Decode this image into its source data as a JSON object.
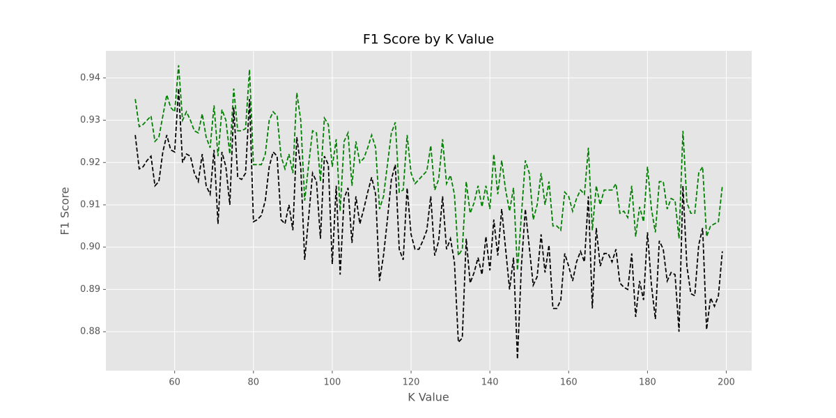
{
  "chart_data": {
    "type": "line",
    "title": "F1 Score by K Value",
    "x_label": "K Value",
    "y_label": "F1 Score",
    "x": [
      50,
      51,
      52,
      53,
      54,
      55,
      56,
      57,
      58,
      59,
      60,
      61,
      62,
      63,
      64,
      65,
      66,
      67,
      68,
      69,
      70,
      71,
      72,
      73,
      74,
      75,
      76,
      77,
      78,
      79,
      80,
      81,
      82,
      83,
      84,
      85,
      86,
      87,
      88,
      89,
      90,
      91,
      92,
      93,
      94,
      95,
      96,
      97,
      98,
      99,
      100,
      101,
      102,
      103,
      104,
      105,
      106,
      107,
      108,
      109,
      110,
      111,
      112,
      113,
      114,
      115,
      116,
      117,
      118,
      119,
      120,
      121,
      122,
      123,
      124,
      125,
      126,
      127,
      128,
      129,
      130,
      131,
      132,
      133,
      134,
      135,
      136,
      137,
      138,
      139,
      140,
      141,
      142,
      143,
      144,
      145,
      146,
      147,
      148,
      149,
      150,
      151,
      152,
      153,
      154,
      155,
      156,
      157,
      158,
      159,
      160,
      161,
      162,
      163,
      164,
      165,
      166,
      167,
      168,
      169,
      170,
      171,
      172,
      173,
      174,
      175,
      176,
      177,
      178,
      179,
      180,
      181,
      182,
      183,
      184,
      185,
      186,
      187,
      188,
      189,
      190,
      191,
      192,
      193,
      194,
      195,
      196,
      197,
      198,
      199
    ],
    "series": [
      {
        "color": "#008000",
        "values": [
          0.935,
          0.9285,
          0.929,
          0.93,
          0.931,
          0.925,
          0.926,
          0.931,
          0.936,
          0.933,
          0.932,
          0.943,
          0.93,
          0.932,
          0.93,
          0.9275,
          0.927,
          0.9315,
          0.926,
          0.9235,
          0.9335,
          0.9215,
          0.9325,
          0.93,
          0.922,
          0.9375,
          0.9275,
          0.9275,
          0.928,
          0.942,
          0.9195,
          0.9195,
          0.9195,
          0.922,
          0.93,
          0.932,
          0.931,
          0.9215,
          0.9185,
          0.922,
          0.9175,
          0.9365,
          0.93,
          0.911,
          0.9195,
          0.9275,
          0.927,
          0.9155,
          0.9305,
          0.929,
          0.919,
          0.9255,
          0.9085,
          0.925,
          0.927,
          0.9145,
          0.925,
          0.92,
          0.921,
          0.9235,
          0.9265,
          0.9235,
          0.909,
          0.912,
          0.9195,
          0.927,
          0.9295,
          0.913,
          0.9135,
          0.9265,
          0.9175,
          0.915,
          0.916,
          0.917,
          0.918,
          0.924,
          0.9135,
          0.916,
          0.9255,
          0.915,
          0.917,
          0.9125,
          0.898,
          0.8995,
          0.9155,
          0.908,
          0.9105,
          0.9145,
          0.9095,
          0.9145,
          0.909,
          0.922,
          0.9125,
          0.9205,
          0.9135,
          0.9085,
          0.914,
          0.8945,
          0.9075,
          0.9205,
          0.9175,
          0.9065,
          0.91,
          0.9175,
          0.91,
          0.9155,
          0.905,
          0.905,
          0.904,
          0.913,
          0.912,
          0.9085,
          0.9115,
          0.9135,
          0.9125,
          0.9235,
          0.904,
          0.9145,
          0.91,
          0.9135,
          0.9135,
          0.9135,
          0.915,
          0.908,
          0.9085,
          0.907,
          0.9145,
          0.9025,
          0.9095,
          0.906,
          0.919,
          0.909,
          0.9035,
          0.9155,
          0.9155,
          0.909,
          0.9115,
          0.911,
          0.902,
          0.9275,
          0.9105,
          0.908,
          0.908,
          0.9175,
          0.919,
          0.9025,
          0.905,
          0.9055,
          0.906,
          0.9145
        ]
      },
      {
        "color": "#000000",
        "values": [
          0.9265,
          0.9185,
          0.919,
          0.9205,
          0.9215,
          0.9145,
          0.9155,
          0.9225,
          0.9265,
          0.923,
          0.9225,
          0.9375,
          0.92,
          0.922,
          0.9215,
          0.9175,
          0.9155,
          0.922,
          0.9145,
          0.9125,
          0.923,
          0.9055,
          0.9225,
          0.919,
          0.91,
          0.933,
          0.9165,
          0.916,
          0.9175,
          0.935,
          0.906,
          0.9065,
          0.9075,
          0.911,
          0.919,
          0.9225,
          0.9215,
          0.9065,
          0.9055,
          0.91,
          0.904,
          0.926,
          0.919,
          0.897,
          0.907,
          0.9175,
          0.9155,
          0.902,
          0.9215,
          0.9195,
          0.896,
          0.9145,
          0.8935,
          0.9115,
          0.914,
          0.901,
          0.912,
          0.9055,
          0.909,
          0.913,
          0.9165,
          0.9125,
          0.892,
          0.898,
          0.9065,
          0.916,
          0.9195,
          0.8995,
          0.897,
          0.914,
          0.903,
          0.8995,
          0.8995,
          0.9015,
          0.904,
          0.912,
          0.898,
          0.9015,
          0.912,
          0.8995,
          0.902,
          0.8965,
          0.8775,
          0.8785,
          0.902,
          0.8915,
          0.894,
          0.8975,
          0.8935,
          0.9025,
          0.8945,
          0.9065,
          0.898,
          0.909,
          0.8995,
          0.89,
          0.8975,
          0.8735,
          0.8955,
          0.909,
          0.9,
          0.891,
          0.893,
          0.903,
          0.894,
          0.9005,
          0.8855,
          0.8855,
          0.8875,
          0.8985,
          0.8955,
          0.892,
          0.8965,
          0.899,
          0.8965,
          0.912,
          0.8855,
          0.9045,
          0.8955,
          0.8985,
          0.8985,
          0.8965,
          0.8995,
          0.8915,
          0.8905,
          0.89,
          0.8985,
          0.8835,
          0.892,
          0.8875,
          0.9035,
          0.891,
          0.883,
          0.9015,
          0.8995,
          0.892,
          0.894,
          0.8935,
          0.88,
          0.9145,
          0.8955,
          0.889,
          0.8885,
          0.9005,
          0.9045,
          0.8805,
          0.888,
          0.886,
          0.8885,
          0.899
        ]
      }
    ],
    "xlim": [
      42.55,
      206.45
    ],
    "ylim": [
      0.8708,
      0.9464
    ],
    "xticks": [
      60,
      80,
      100,
      120,
      140,
      160,
      180,
      200
    ],
    "yticks": [
      0.88,
      0.89,
      {
        "value": 0.9,
        "label": "0.90"
      },
      0.91,
      0.92,
      0.93,
      0.94
    ],
    "grid": true,
    "line_style": "dashed"
  }
}
